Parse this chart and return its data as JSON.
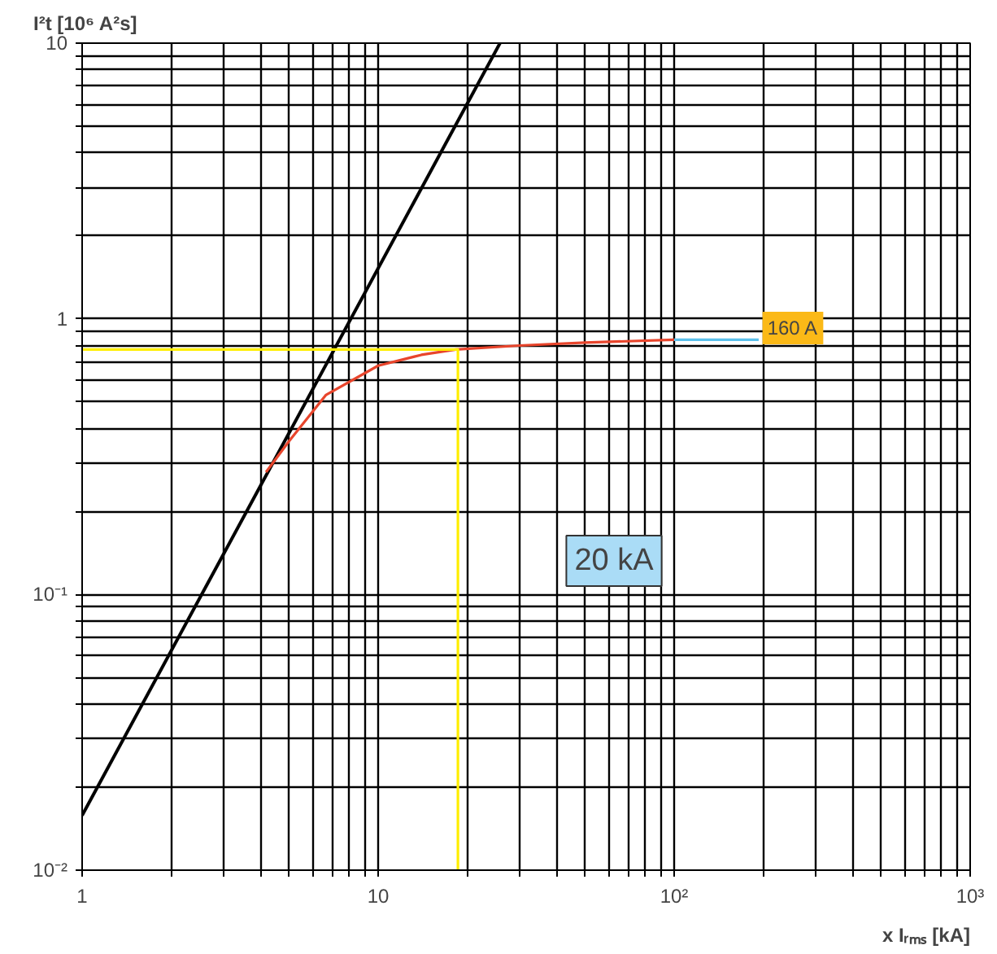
{
  "chart_data": {
    "type": "line",
    "xlabel": "x Iᵣₘₛ [kA]",
    "ylabel": "I²t [10⁶ A²s]",
    "log": "xy",
    "xlim": [
      1,
      1000
    ],
    "ylim": [
      0.01,
      10
    ],
    "xticks": [
      1,
      {
        "value": 2,
        "label": null
      },
      {
        "value": 3,
        "label": null
      },
      {
        "value": 4,
        "label": null
      },
      {
        "value": 5,
        "label": null
      },
      {
        "value": 6,
        "label": null
      },
      {
        "value": 7,
        "label": null
      },
      {
        "value": 8,
        "label": null
      },
      {
        "value": 9,
        "label": null
      },
      10,
      {
        "value": 20,
        "label": null
      },
      {
        "value": 30,
        "label": null
      },
      {
        "value": 40,
        "label": null
      },
      {
        "value": 50,
        "label": null
      },
      {
        "value": 60,
        "label": null
      },
      {
        "value": 70,
        "label": null
      },
      {
        "value": 80,
        "label": null
      },
      {
        "value": 90,
        "label": null
      },
      {
        "value": 100,
        "label": "10²"
      },
      {
        "value": 200,
        "label": null
      },
      {
        "value": 300,
        "label": null
      },
      {
        "value": 400,
        "label": null
      },
      {
        "value": 500,
        "label": null
      },
      {
        "value": 600,
        "label": null
      },
      {
        "value": 700,
        "label": null
      },
      {
        "value": 800,
        "label": null
      },
      {
        "value": 900,
        "label": null
      },
      {
        "value": 1000,
        "label": "10³"
      }
    ],
    "yticks": [
      {
        "value": 0.01,
        "label": "10⁻²"
      },
      {
        "value": 0.02,
        "label": null
      },
      {
        "value": 0.03,
        "label": null
      },
      {
        "value": 0.04,
        "label": null
      },
      {
        "value": 0.05,
        "label": null
      },
      {
        "value": 0.06,
        "label": null
      },
      {
        "value": 0.07,
        "label": null
      },
      {
        "value": 0.08,
        "label": null
      },
      {
        "value": 0.09,
        "label": null
      },
      {
        "value": 0.1,
        "label": "10⁻¹"
      },
      {
        "value": 0.2,
        "label": null
      },
      {
        "value": 0.3,
        "label": null
      },
      {
        "value": 0.4,
        "label": null
      },
      {
        "value": 0.5,
        "label": null
      },
      {
        "value": 0.6,
        "label": null
      },
      {
        "value": 0.7,
        "label": null
      },
      {
        "value": 0.8,
        "label": null
      },
      {
        "value": 0.9,
        "label": null
      },
      1,
      {
        "value": 2,
        "label": null
      },
      {
        "value": 3,
        "label": null
      },
      {
        "value": 4,
        "label": null
      },
      {
        "value": 5,
        "label": null
      },
      {
        "value": 6,
        "label": null
      },
      {
        "value": 7,
        "label": null
      },
      {
        "value": 8,
        "label": null
      },
      {
        "value": 9,
        "label": null
      },
      10
    ],
    "grid": true,
    "series": [
      {
        "color": "#000000",
        "x": [
          1,
          25.8
        ],
        "values": [
          0.0158,
          10
        ]
      },
      {
        "color": "#e8452c",
        "x": [
          4.18,
          5,
          6.67,
          10,
          14,
          18.3,
          30,
          50,
          100
        ],
        "values": [
          0.278,
          0.36,
          0.53,
          0.676,
          0.74,
          0.774,
          0.8,
          0.82,
          0.84
        ]
      },
      {
        "color": "#5bc0eb",
        "x": [
          100,
          193
        ],
        "values": [
          0.84,
          0.84
        ]
      },
      {
        "color": "#ffee00",
        "x": [
          1,
          18.6,
          18.6
        ],
        "values": [
          0.774,
          0.774,
          0.01
        ]
      }
    ],
    "annotations": [
      "160 A",
      "20 kA"
    ]
  }
}
